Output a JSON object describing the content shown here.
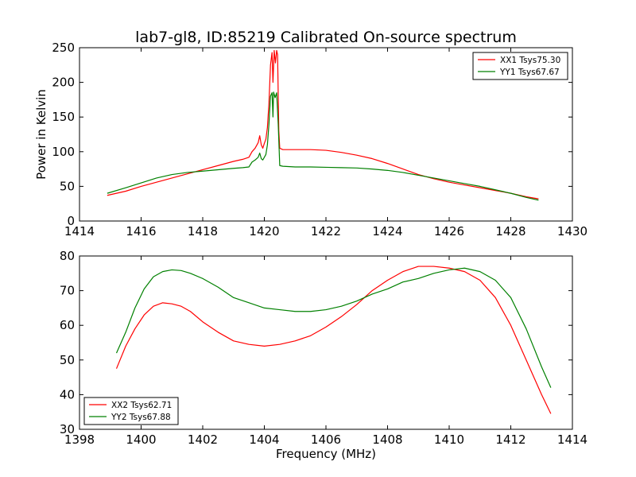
{
  "figure": {
    "title": "lab7-gl8, ID:85219 Calibrated On-source spectrum"
  },
  "chart_data": [
    {
      "type": "line",
      "title": "lab7-gl8, ID:85219 Calibrated On-source spectrum",
      "xlabel": "",
      "ylabel": "Power in Kelvin",
      "xlim": [
        1414,
        1430
      ],
      "ylim": [
        0,
        250
      ],
      "xticks": [
        1414,
        1416,
        1418,
        1420,
        1422,
        1424,
        1426,
        1428,
        1430
      ],
      "yticks": [
        0,
        50,
        100,
        150,
        200,
        250
      ],
      "grid": false,
      "legend_position": "top-right",
      "series": [
        {
          "name": "XX1 Tsys75.30",
          "color": "#ff0000",
          "points": [
            [
              1414.9,
              37
            ],
            [
              1415.5,
              43
            ],
            [
              1416.0,
              50
            ],
            [
              1416.5,
              56
            ],
            [
              1417.0,
              62
            ],
            [
              1417.5,
              68
            ],
            [
              1418.0,
              74
            ],
            [
              1418.5,
              80
            ],
            [
              1419.0,
              86
            ],
            [
              1419.3,
              89
            ],
            [
              1419.5,
              92
            ],
            [
              1419.6,
              100
            ],
            [
              1419.7,
              105
            ],
            [
              1419.8,
              113
            ],
            [
              1419.85,
              123
            ],
            [
              1419.9,
              110
            ],
            [
              1419.95,
              105
            ],
            [
              1420.0,
              112
            ],
            [
              1420.05,
              118
            ],
            [
              1420.1,
              135
            ],
            [
              1420.15,
              170
            ],
            [
              1420.2,
              225
            ],
            [
              1420.25,
              243
            ],
            [
              1420.28,
              200
            ],
            [
              1420.32,
              246
            ],
            [
              1420.36,
              228
            ],
            [
              1420.4,
              246
            ],
            [
              1420.43,
              240
            ],
            [
              1420.47,
              130
            ],
            [
              1420.5,
              105
            ],
            [
              1420.6,
              103
            ],
            [
              1421.0,
              103
            ],
            [
              1421.5,
              103
            ],
            [
              1422.0,
              102
            ],
            [
              1422.5,
              99
            ],
            [
              1423.0,
              95
            ],
            [
              1423.5,
              90
            ],
            [
              1424.0,
              83
            ],
            [
              1424.5,
              75
            ],
            [
              1425.0,
              67
            ],
            [
              1425.5,
              61
            ],
            [
              1426.0,
              56
            ],
            [
              1426.5,
              52
            ],
            [
              1427.0,
              48
            ],
            [
              1427.5,
              44
            ],
            [
              1428.0,
              40
            ],
            [
              1428.5,
              35
            ],
            [
              1428.9,
              32
            ]
          ]
        },
        {
          "name": "YY1 Tsys67.67",
          "color": "#008000",
          "points": [
            [
              1414.9,
              40
            ],
            [
              1415.5,
              48
            ],
            [
              1416.0,
              55
            ],
            [
              1416.5,
              62
            ],
            [
              1417.0,
              67
            ],
            [
              1417.5,
              70
            ],
            [
              1418.0,
              72
            ],
            [
              1418.5,
              74
            ],
            [
              1419.0,
              76
            ],
            [
              1419.3,
              77
            ],
            [
              1419.5,
              78
            ],
            [
              1419.6,
              85
            ],
            [
              1419.7,
              88
            ],
            [
              1419.8,
              92
            ],
            [
              1419.85,
              98
            ],
            [
              1419.9,
              90
            ],
            [
              1419.95,
              88
            ],
            [
              1420.0,
              92
            ],
            [
              1420.05,
              96
            ],
            [
              1420.1,
              110
            ],
            [
              1420.15,
              140
            ],
            [
              1420.2,
              180
            ],
            [
              1420.25,
              185
            ],
            [
              1420.28,
              150
            ],
            [
              1420.3,
              186
            ],
            [
              1420.35,
              178
            ],
            [
              1420.4,
              185
            ],
            [
              1420.45,
              140
            ],
            [
              1420.5,
              80
            ],
            [
              1420.6,
              79
            ],
            [
              1421.0,
              78
            ],
            [
              1421.5,
              78
            ],
            [
              1422.0,
              77.5
            ],
            [
              1422.5,
              77
            ],
            [
              1423.0,
              76.5
            ],
            [
              1423.5,
              75
            ],
            [
              1424.0,
              73
            ],
            [
              1424.5,
              70
            ],
            [
              1425.0,
              66
            ],
            [
              1425.5,
              62
            ],
            [
              1426.0,
              58
            ],
            [
              1426.5,
              54
            ],
            [
              1427.0,
              50
            ],
            [
              1427.5,
              45
            ],
            [
              1428.0,
              40
            ],
            [
              1428.5,
              34
            ],
            [
              1428.9,
              30
            ]
          ]
        }
      ]
    },
    {
      "type": "line",
      "title": "",
      "xlabel": "Frequency (MHz)",
      "ylabel": "",
      "xlim": [
        1398,
        1414
      ],
      "ylim": [
        30,
        80
      ],
      "xticks": [
        1398,
        1400,
        1402,
        1404,
        1406,
        1408,
        1410,
        1412,
        1414
      ],
      "yticks": [
        30,
        40,
        50,
        60,
        70,
        80
      ],
      "grid": false,
      "legend_position": "bottom-left",
      "series": [
        {
          "name": "XX2 Tsys62.71",
          "color": "#ff0000",
          "points": [
            [
              1399.2,
              47.5
            ],
            [
              1399.5,
              54
            ],
            [
              1399.8,
              59
            ],
            [
              1400.1,
              63
            ],
            [
              1400.4,
              65.5
            ],
            [
              1400.7,
              66.5
            ],
            [
              1401.0,
              66.2
            ],
            [
              1401.3,
              65.5
            ],
            [
              1401.6,
              64
            ],
            [
              1402.0,
              61
            ],
            [
              1402.5,
              58
            ],
            [
              1403.0,
              55.5
            ],
            [
              1403.5,
              54.5
            ],
            [
              1404.0,
              54
            ],
            [
              1404.5,
              54.5
            ],
            [
              1405.0,
              55.5
            ],
            [
              1405.5,
              57
            ],
            [
              1406.0,
              59.5
            ],
            [
              1406.5,
              62.5
            ],
            [
              1407.0,
              66
            ],
            [
              1407.5,
              70
            ],
            [
              1408.0,
              73
            ],
            [
              1408.5,
              75.5
            ],
            [
              1409.0,
              77
            ],
            [
              1409.5,
              77
            ],
            [
              1410.0,
              76.5
            ],
            [
              1410.5,
              75.5
            ],
            [
              1411.0,
              73
            ],
            [
              1411.5,
              68
            ],
            [
              1412.0,
              60
            ],
            [
              1412.5,
              50
            ],
            [
              1413.0,
              40
            ],
            [
              1413.3,
              34.5
            ]
          ]
        },
        {
          "name": "YY2 Tsys67.88",
          "color": "#008000",
          "points": [
            [
              1399.2,
              52
            ],
            [
              1399.5,
              58
            ],
            [
              1399.8,
              65
            ],
            [
              1400.1,
              70.5
            ],
            [
              1400.4,
              74
            ],
            [
              1400.7,
              75.5
            ],
            [
              1401.0,
              76
            ],
            [
              1401.3,
              75.8
            ],
            [
              1401.6,
              75
            ],
            [
              1402.0,
              73.5
            ],
            [
              1402.5,
              71
            ],
            [
              1403.0,
              68
            ],
            [
              1403.5,
              66.5
            ],
            [
              1404.0,
              65
            ],
            [
              1404.5,
              64.5
            ],
            [
              1405.0,
              64
            ],
            [
              1405.5,
              64
            ],
            [
              1406.0,
              64.5
            ],
            [
              1406.5,
              65.5
            ],
            [
              1407.0,
              67
            ],
            [
              1407.5,
              69
            ],
            [
              1408.0,
              70.5
            ],
            [
              1408.5,
              72.5
            ],
            [
              1409.0,
              73.5
            ],
            [
              1409.5,
              75
            ],
            [
              1410.0,
              76
            ],
            [
              1410.5,
              76.5
            ],
            [
              1411.0,
              75.5
            ],
            [
              1411.5,
              73
            ],
            [
              1412.0,
              68
            ],
            [
              1412.5,
              59
            ],
            [
              1413.0,
              48
            ],
            [
              1413.3,
              42
            ]
          ]
        }
      ]
    }
  ]
}
